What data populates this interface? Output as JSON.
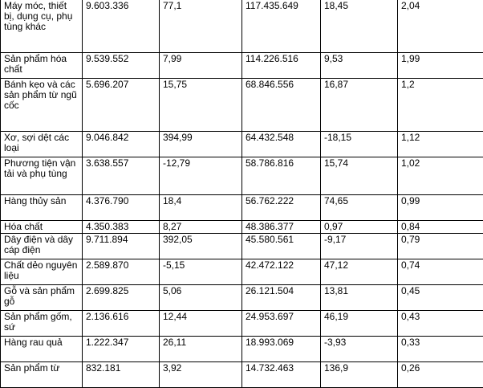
{
  "table": {
    "rows": [
      {
        "name": "Máy móc, thiết bị, dụng cụ, phụ tùng khác",
        "c1": "9.603.336",
        "c2": "77,1",
        "c3": "117.435.649",
        "c4": "18,45",
        "c5": "2,04"
      },
      {
        "name": "Sản phẩm hóa chất",
        "c1": "9.539.552",
        "c2": "7,99",
        "c3": "114.226.516",
        "c4": "9,53",
        "c5": "1,99"
      },
      {
        "name": "Bánh kẹo và các sản phẩm từ ngũ cốc",
        "c1": "5.696.207",
        "c2": "15,75",
        "c3": "68.846.556",
        "c4": "16,87",
        "c5": "1,2"
      },
      {
        "name": "Xơ, sợi dệt các loại",
        "c1": "9.046.842",
        "c2": "394,99",
        "c3": "64.432.548",
        "c4": "-18,15",
        "c5": "1,12"
      },
      {
        "name": "Phương tiện vận tải và phụ tùng",
        "c1": "3.638.557",
        "c2": "-12,79",
        "c3": "58.786.816",
        "c4": "15,74",
        "c5": "1,02"
      },
      {
        "name": "Hàng thủy sản",
        "c1": "4.376.790",
        "c2": "18,4",
        "c3": "56.762.222",
        "c4": "74,65",
        "c5": "0,99"
      },
      {
        "name": "Hóa chất",
        "c1": "4.350.383",
        "c2": "8,27",
        "c3": "48.386.377",
        "c4": "0,97",
        "c5": "0,84"
      },
      {
        "name": "Dây điện và dây cáp điện",
        "c1": "9.711.894",
        "c2": "392,05",
        "c3": "45.580.561",
        "c4": "-9,17",
        "c5": "0,79"
      },
      {
        "name": "Chất dẻo nguyên liệu",
        "c1": "2.589.870",
        "c2": "-5,15",
        "c3": "42.472.122",
        "c4": "47,12",
        "c5": "0,74"
      },
      {
        "name": "Gỗ và sản phẩm gỗ",
        "c1": "2.699.825",
        "c2": "5,06",
        "c3": "26.121.504",
        "c4": "13,81",
        "c5": "0,45"
      },
      {
        "name": "Sản phẩm gốm, sứ",
        "c1": "2.136.616",
        "c2": "12,44",
        "c3": "24.953.697",
        "c4": "46,19",
        "c5": "0,43"
      },
      {
        "name": "Hàng rau quả",
        "c1": "1.222.347",
        "c2": "26,11",
        "c3": "18.993.069",
        "c4": "-3,93",
        "c5": "0,33"
      },
      {
        "name": "Sản phẩm từ",
        "c1": "832.181",
        "c2": "3,92",
        "c3": "14.732.463",
        "c4": "136,9",
        "c5": "0,26"
      }
    ]
  }
}
